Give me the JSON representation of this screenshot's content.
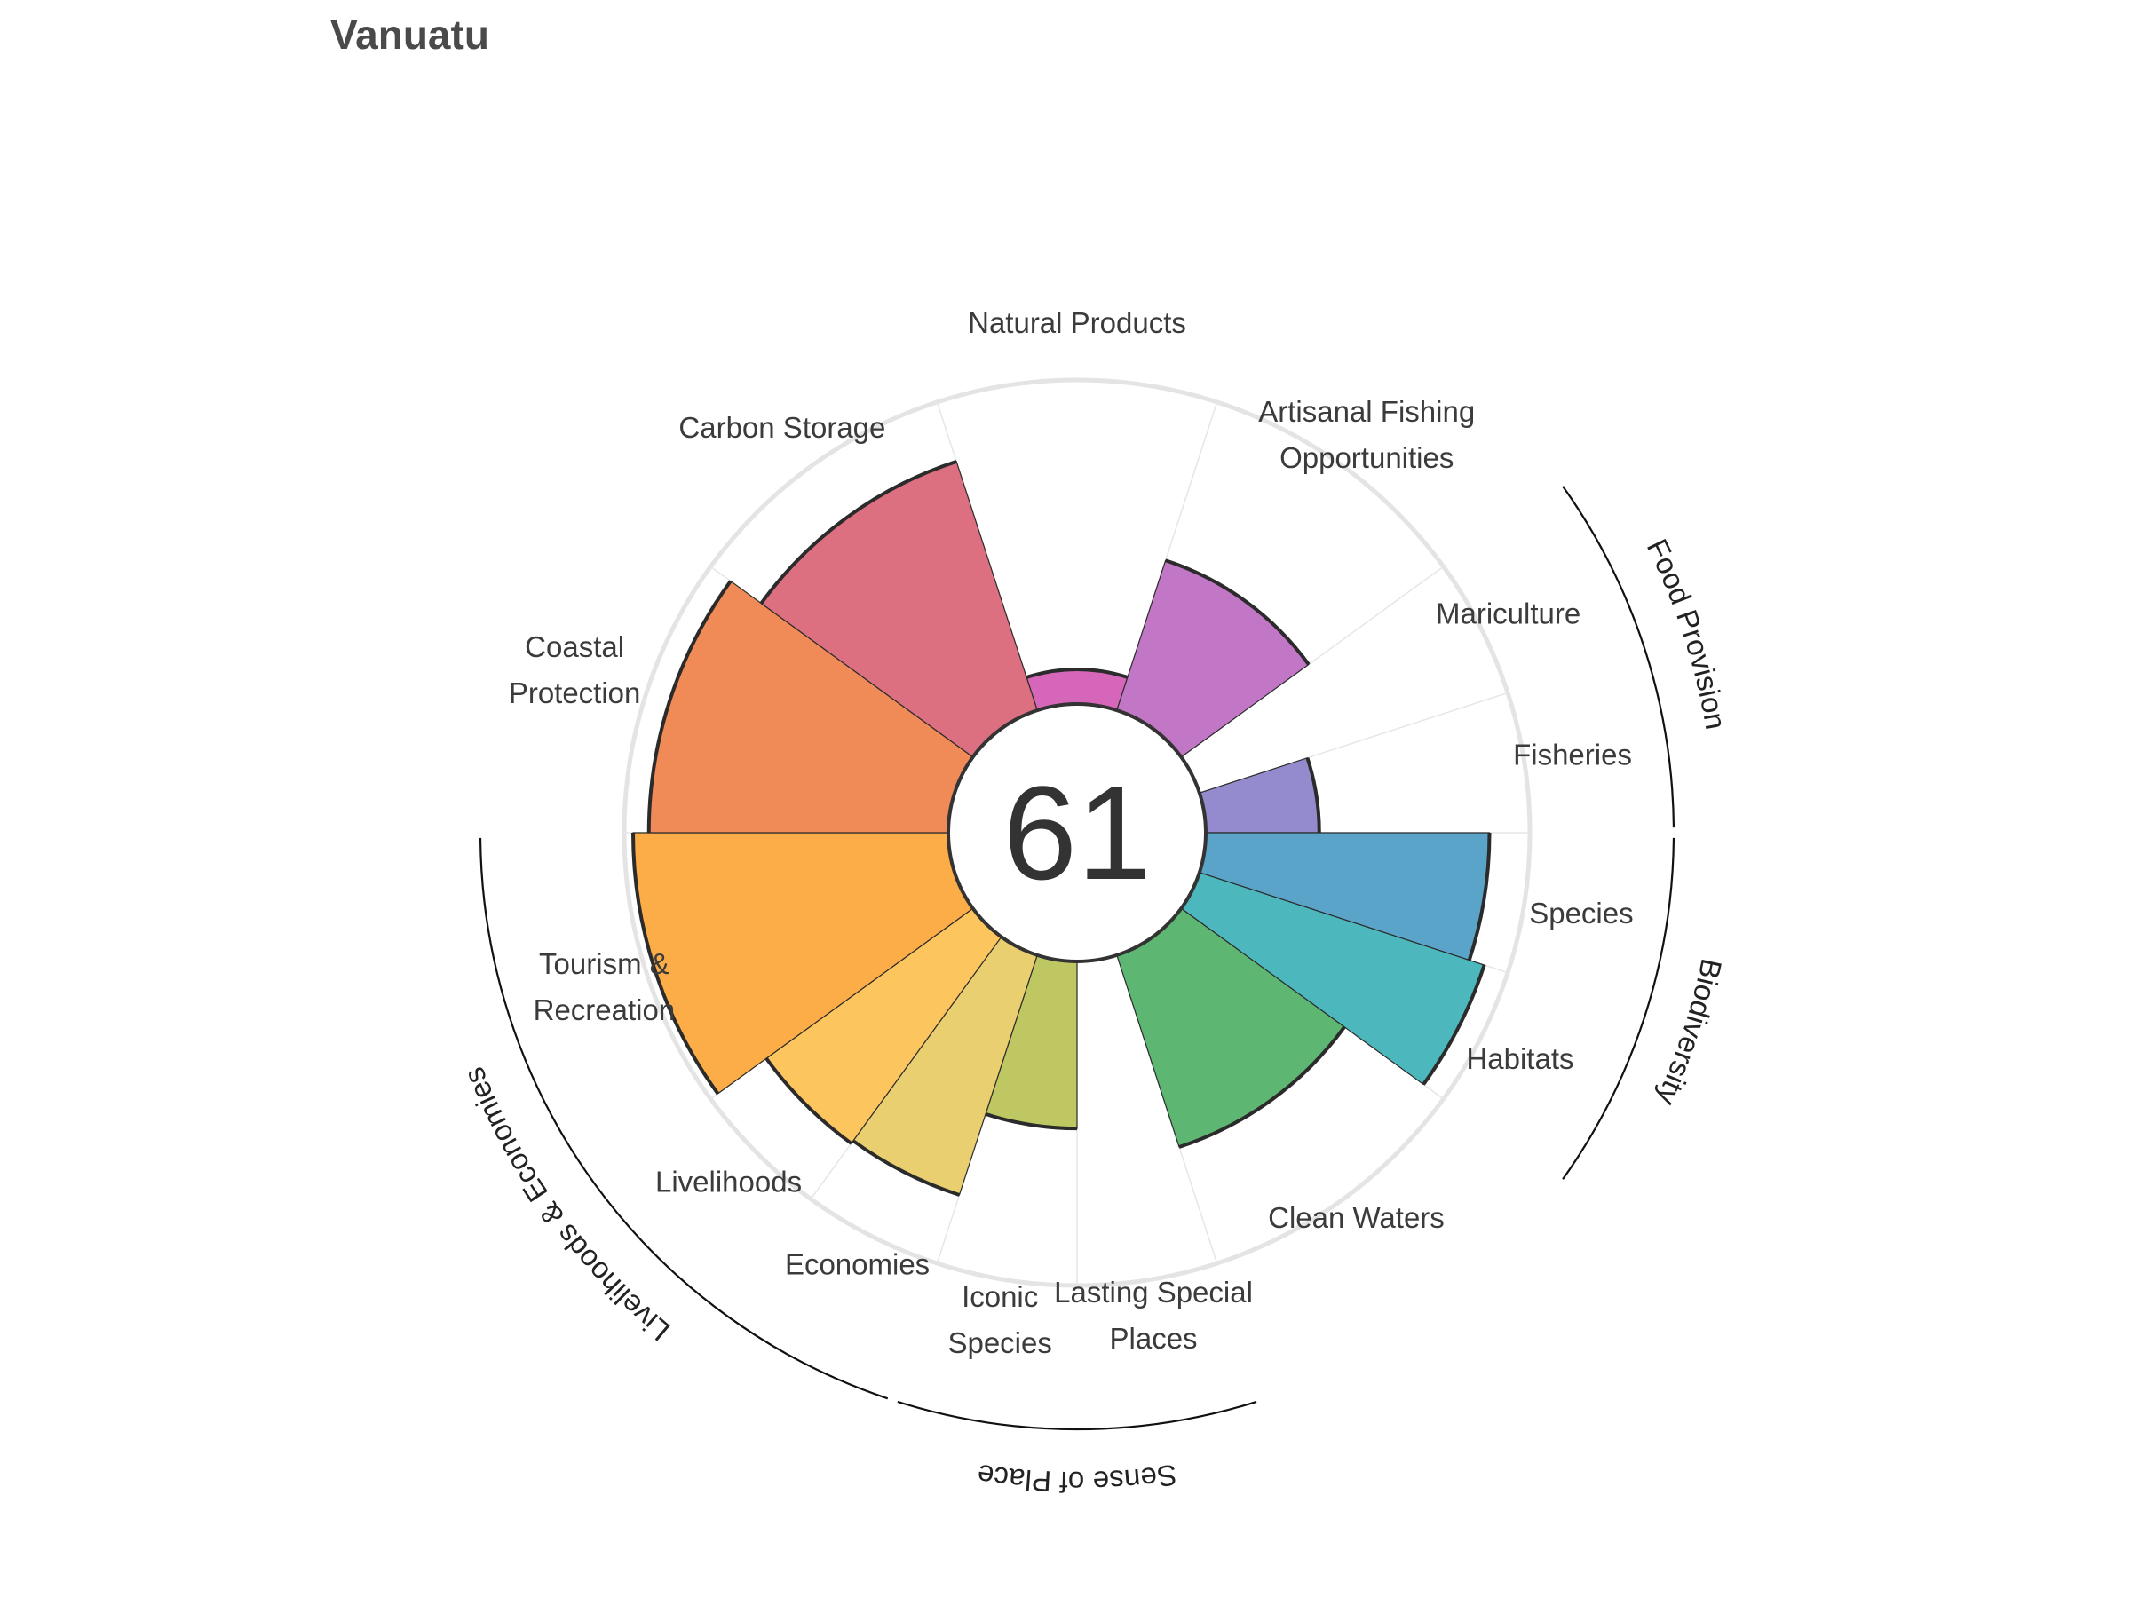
{
  "chart_data": {
    "type": "rose",
    "title": "Vanuatu",
    "center_score": "61",
    "value_range": [
      0,
      100
    ],
    "petals": [
      {
        "label": [
          "Natural Products"
        ],
        "value": 11,
        "weight": 1.0,
        "color": "#d666b9"
      },
      {
        "label": [
          "Artisanal Fishing",
          "Opportunities"
        ],
        "value": 50,
        "weight": 1.0,
        "color": "#c276c6"
      },
      {
        "label": [
          "Mariculture"
        ],
        "value": 0,
        "weight": 0.5,
        "color": "#a788cf"
      },
      {
        "label": [
          "Fisheries"
        ],
        "value": 36,
        "weight": 0.5,
        "color": "#938bcd"
      },
      {
        "label": [
          "Species"
        ],
        "value": 90,
        "weight": 0.5,
        "color": "#5ba4c9"
      },
      {
        "label": [
          "Habitats"
        ],
        "value": 95,
        "weight": 0.5,
        "color": "#4cb8bd"
      },
      {
        "label": [
          "Clean Waters"
        ],
        "value": 64,
        "weight": 1.0,
        "color": "#5db671"
      },
      {
        "label": [
          "Lasting Special",
          "Places"
        ],
        "value": 0,
        "weight": 0.5,
        "color": "#9dc864"
      },
      {
        "label": [
          "Iconic",
          "Species"
        ],
        "value": 53,
        "weight": 0.5,
        "color": "#bfc763"
      },
      {
        "label": [
          "Economies"
        ],
        "value": 80,
        "weight": 0.5,
        "color": "#e9cf6f"
      },
      {
        "label": [
          "Livelihoods"
        ],
        "value": 81,
        "weight": 0.5,
        "color": "#fdc55e"
      },
      {
        "label": [
          "Tourism &",
          "Recreation"
        ],
        "value": 100,
        "weight": 1.0,
        "color": "#fdad47"
      },
      {
        "label": [
          "Coastal",
          "Protection"
        ],
        "value": 95,
        "weight": 1.0,
        "color": "#f08b57"
      },
      {
        "label": [
          "Carbon Storage"
        ],
        "value": 83,
        "weight": 1.0,
        "color": "#dc6f80"
      }
    ],
    "groups": [
      {
        "label": "Food Provision"
      },
      {
        "label": "Biodiversity"
      },
      {
        "label": "Sense of Place"
      },
      {
        "label": "Livelihoods & Economies"
      }
    ]
  }
}
